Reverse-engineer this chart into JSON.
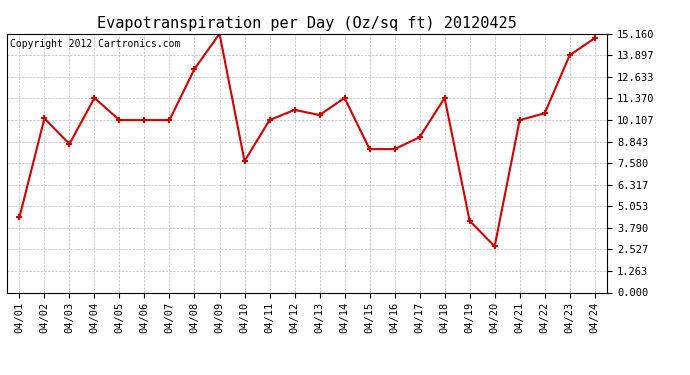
{
  "title": "Evapotranspiration per Day (Oz/sq ft) 20120425",
  "copyright": "Copyright 2012 Cartronics.com",
  "dates": [
    "04/01",
    "04/02",
    "04/03",
    "04/04",
    "04/05",
    "04/06",
    "04/07",
    "04/08",
    "04/09",
    "04/10",
    "04/11",
    "04/12",
    "04/13",
    "04/14",
    "04/15",
    "04/16",
    "04/17",
    "04/18",
    "04/19",
    "04/20",
    "04/21",
    "04/22",
    "04/23",
    "04/24"
  ],
  "values": [
    4.4,
    10.2,
    8.7,
    11.4,
    10.1,
    10.1,
    10.1,
    13.1,
    15.16,
    7.7,
    10.1,
    10.7,
    10.4,
    11.4,
    8.4,
    8.4,
    9.1,
    11.4,
    4.2,
    2.7,
    10.1,
    10.5,
    13.9,
    14.9
  ],
  "line_color": "#cc0000",
  "marker": "+",
  "marker_size": 5,
  "marker_lw": 1.5,
  "line_width": 1.5,
  "background_color": "#ffffff",
  "grid_color": "#bbbbbb",
  "ylim": [
    0.0,
    15.16
  ],
  "yticks": [
    0.0,
    1.263,
    2.527,
    3.79,
    5.053,
    6.317,
    7.58,
    8.843,
    10.107,
    11.37,
    12.633,
    13.897,
    15.16
  ],
  "title_fontsize": 11,
  "copyright_fontsize": 7,
  "tick_fontsize": 7.5,
  "fig_width": 6.9,
  "fig_height": 3.75,
  "dpi": 100
}
